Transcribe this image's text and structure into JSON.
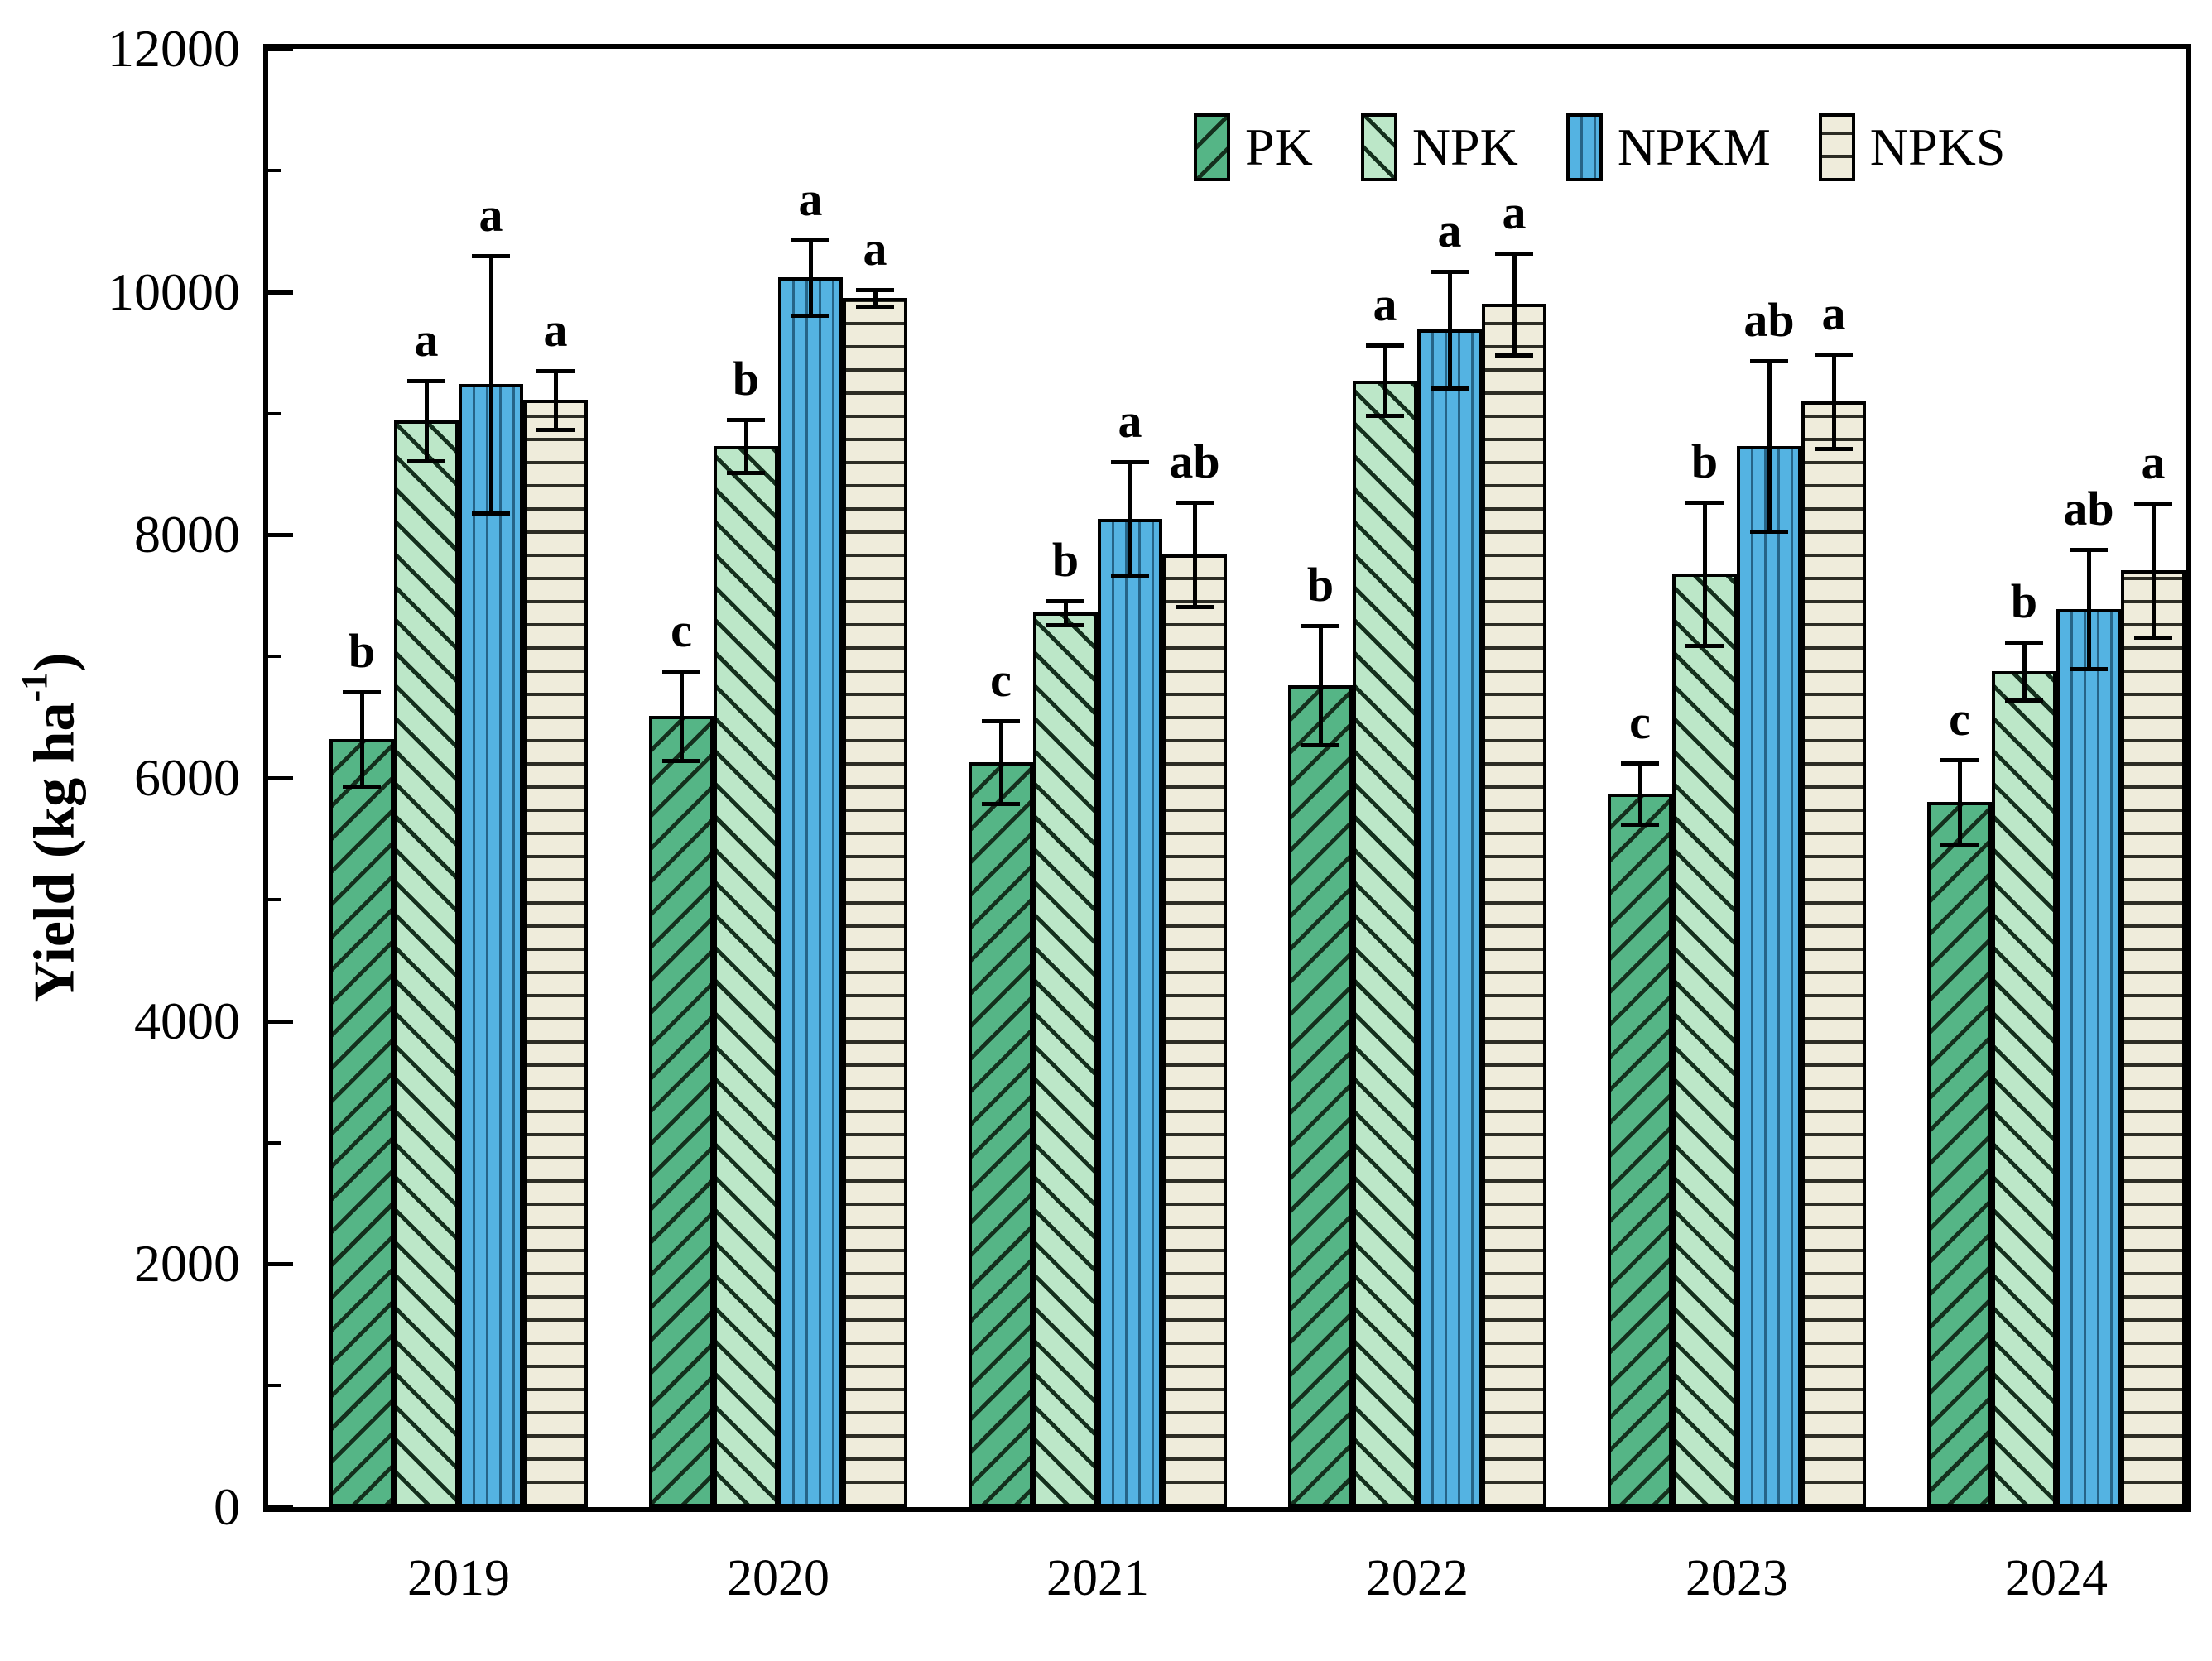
{
  "figure": {
    "ylabel_prefix": "Yield (kg ha",
    "ylabel_sup": "-1",
    "ylabel_suffix": ")"
  },
  "chart_data": {
    "type": "bar",
    "title": "",
    "xlabel": "",
    "ylabel": "Yield (kg ha-1)",
    "ylim": [
      0,
      12000
    ],
    "y_major_ticks": [
      0,
      2000,
      4000,
      6000,
      8000,
      10000,
      12000
    ],
    "y_minor_step": 1000,
    "grid": false,
    "legend_position": "inside-top-right",
    "error_bars": true,
    "categories": [
      "2019",
      "2020",
      "2021",
      "2022",
      "2023",
      "2024"
    ],
    "series": [
      {
        "name": "PK",
        "fill": "#55b586",
        "hatch": "diagonal-forward",
        "values": [
          6320,
          6510,
          6130,
          6760,
          5870,
          5800
        ],
        "errors": [
          390,
          370,
          340,
          490,
          250,
          350
        ],
        "sig_letters": [
          "b",
          "c",
          "c",
          "b",
          "c",
          "c"
        ]
      },
      {
        "name": "NPK",
        "fill": "#bce7c8",
        "hatch": "diagonal-back",
        "values": [
          8940,
          8730,
          7360,
          9270,
          7680,
          6880
        ],
        "errors": [
          330,
          220,
          100,
          290,
          590,
          240
        ],
        "sig_letters": [
          "a",
          "b",
          "b",
          "a",
          "b",
          "b"
        ]
      },
      {
        "name": "NPKM",
        "fill": "#54b3e2",
        "hatch": "vertical",
        "values": [
          9240,
          10120,
          8130,
          9690,
          8730,
          7390
        ],
        "errors": [
          1060,
          310,
          470,
          480,
          700,
          490
        ],
        "sig_letters": [
          "a",
          "a",
          "a",
          "a",
          "ab",
          "ab"
        ]
      },
      {
        "name": "NPKS",
        "fill": "#efecdb",
        "hatch": "horizontal",
        "values": [
          9110,
          9950,
          7840,
          9900,
          9100,
          7710
        ],
        "errors": [
          240,
          70,
          430,
          420,
          390,
          550
        ],
        "sig_letters": [
          "a",
          "a",
          "ab",
          "a",
          "a",
          "a"
        ]
      }
    ]
  }
}
